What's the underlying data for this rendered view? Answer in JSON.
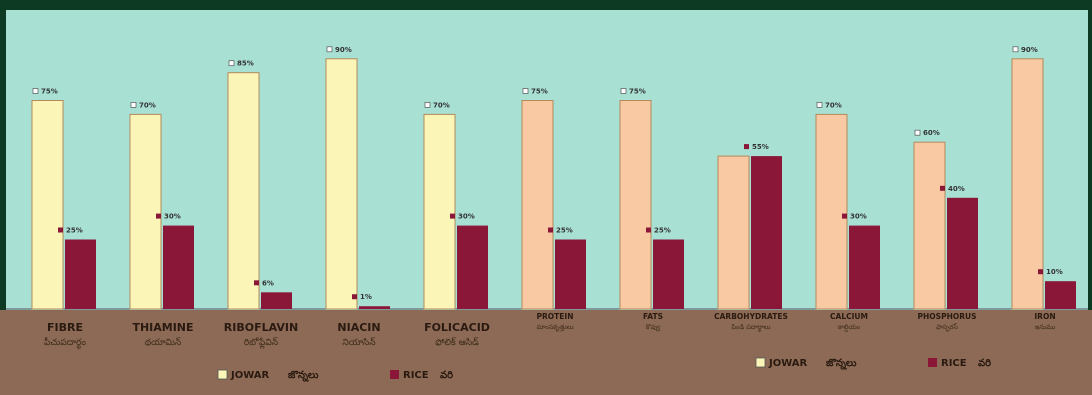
{
  "colors": {
    "plot_bg": "#a8e0d4",
    "jowar_a": "#fbf6b8",
    "jowar_b": "#f8c9a2",
    "rice": "#8a1638",
    "border": "#0d3a22",
    "ground": "#8c6a55"
  },
  "chart_data": {
    "type": "bar",
    "categories": [
      "FIBRE",
      "THIAMINE",
      "RIBOFLAVIN",
      "NIACIN",
      "FOLICACID",
      "PROTEIN",
      "FATS",
      "CARBOHYDRATES",
      "CALCIUM",
      "PHOSPHORUS",
      "IRON"
    ],
    "sublabels": [
      "పీచుపదార్థం",
      "థయామిన్",
      "రిబోఫ్లేవిన్",
      "నియాసిన్",
      "ఫోలిక్ ఆసిడ్",
      "మాంసకృత్తులు",
      "కొవ్వు",
      "పిండి పదార్థాలు",
      "కాల్షియం",
      "ఫాస్ఫరస్",
      "ఇనుము"
    ],
    "series": [
      {
        "name": "JOWAR",
        "values": [
          75,
          70,
          85,
          90,
          70,
          75,
          75,
          55,
          70,
          60,
          90
        ]
      },
      {
        "name": "RICE",
        "values": [
          25,
          30,
          6,
          1,
          30,
          25,
          25,
          55,
          30,
          40,
          10
        ]
      }
    ],
    "value_labels": {
      "JOWAR": [
        "75%",
        "70%",
        "85%",
        "90%",
        "70%",
        "75%",
        "75%",
        "",
        "70%",
        "60%",
        "90%"
      ],
      "RICE": [
        "25%",
        "30%",
        "6%",
        "1%",
        "30%",
        "25%",
        "25%",
        "55%",
        "30%",
        "40%",
        "10%"
      ]
    },
    "ylim": [
      0,
      100
    ],
    "legends": [
      {
        "jowar": "JOWAR",
        "jowar_te": "జొన్నలు",
        "rice": "RICE",
        "rice_te": "వరి"
      },
      {
        "jowar": "JOWAR",
        "jowar_te": "జొన్నలు",
        "rice": "RICE",
        "rice_te": "వరి"
      }
    ]
  }
}
